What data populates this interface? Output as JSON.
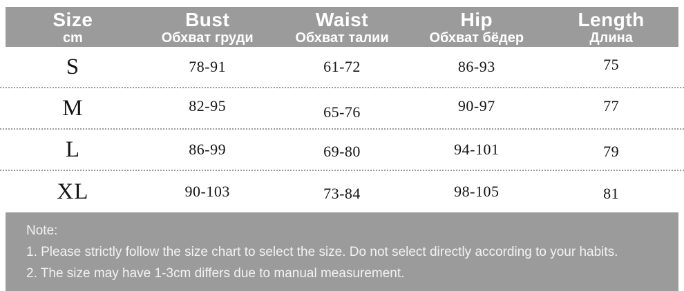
{
  "chart_data": {
    "type": "table",
    "title": "Size chart (cm) with English and Russian labels",
    "columns": [
      "Size cm",
      "Bust Обхват груди",
      "Waist Обхват талии",
      "Hip Обхват бёдер",
      "Length Длина"
    ],
    "rows": [
      [
        "S",
        "78-91",
        "61-72",
        "86-93",
        "75"
      ],
      [
        "M",
        "82-95",
        "65-76",
        "90-97",
        "77"
      ],
      [
        "L",
        "86-99",
        "69-80",
        "94-101",
        "79"
      ],
      [
        "XL",
        "90-103",
        "73-84",
        "98-105",
        "81"
      ]
    ]
  },
  "table": {
    "header": {
      "columns": [
        {
          "en": "Size",
          "ru": "cm"
        },
        {
          "en": "Bust",
          "ru": "Обхват груди"
        },
        {
          "en": "Waist",
          "ru": "Обхват талии"
        },
        {
          "en": "Hip",
          "ru": "Обхват бёдер"
        },
        {
          "en": "Length",
          "ru": "Длина"
        }
      ]
    },
    "rows": [
      {
        "size": "S",
        "bust": "78-91",
        "waist": "61-72",
        "hip": "86-93",
        "length": "75"
      },
      {
        "size": "M",
        "bust": "82-95",
        "waist": "65-76",
        "hip": "90-97",
        "length": "77"
      },
      {
        "size": "L",
        "bust": "86-99",
        "waist": "69-80",
        "hip": "94-101",
        "length": "79"
      },
      {
        "size": "XL",
        "bust": "90-103",
        "waist": "73-84",
        "hip": "98-105",
        "length": "81"
      }
    ]
  },
  "note": {
    "title": "Note:",
    "line1": "1. Please strictly follow the size chart to select the size. Do not select directly according to your habits.",
    "line2": "2. The size may have 1-3cm differs due to manual measurement."
  },
  "colors": {
    "band_gray": "#9b9b9b",
    "header_text": "#ffffff",
    "note_text": "#f3f3f3",
    "data_text": "#141414"
  }
}
